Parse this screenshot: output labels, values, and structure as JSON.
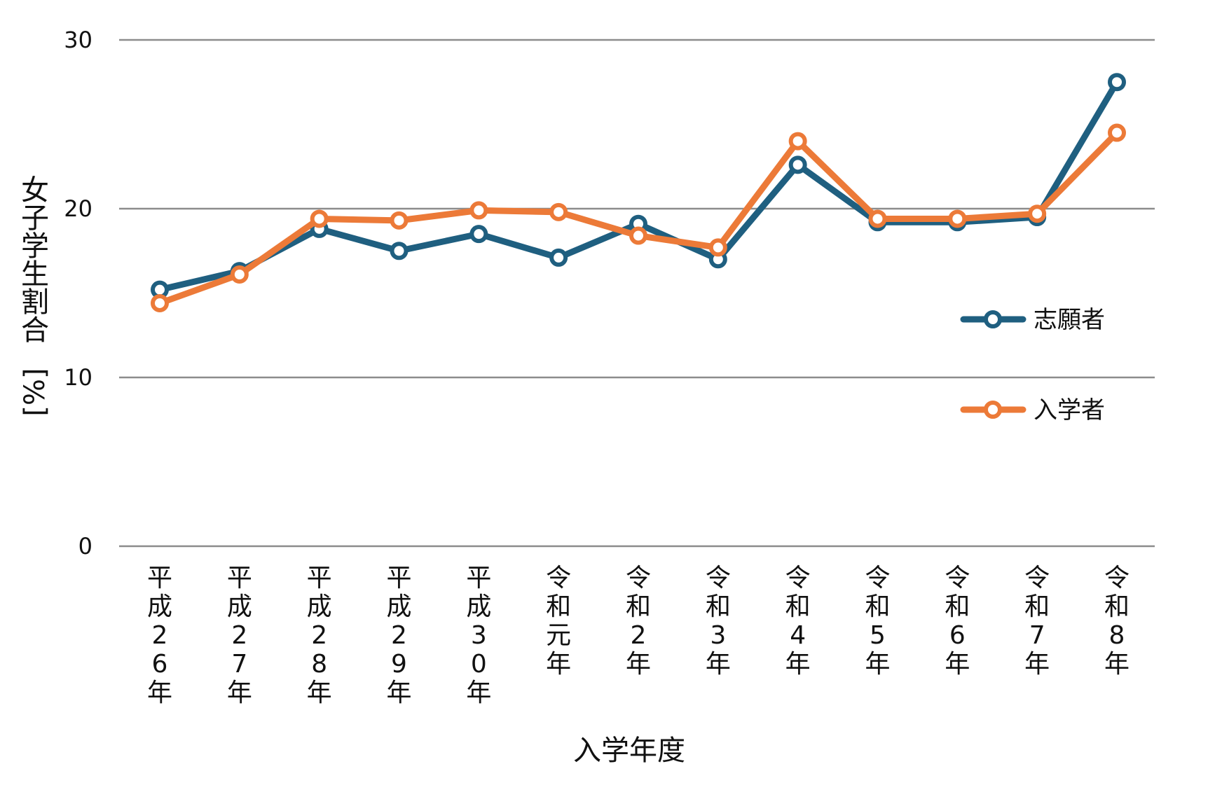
{
  "chart_data": {
    "type": "line",
    "title": "",
    "xlabel": "入学年度",
    "ylabel": "女子学生割合[%]",
    "ylim": [
      0,
      30
    ],
    "yticks": [
      "0",
      "10",
      "20",
      "30"
    ],
    "grid": true,
    "legend_position": "right",
    "categories": [
      "平成26年",
      "平成27年",
      "平成28年",
      "平成29年",
      "平成30年",
      "令和元年",
      "令和2年",
      "令和3年",
      "令和4年",
      "令和5年",
      "令和6年",
      "令和7年",
      "令和8年"
    ],
    "series": [
      {
        "name": "志願者",
        "color": "#1f5f80",
        "values": [
          15.2,
          16.3,
          18.8,
          17.5,
          18.5,
          17.1,
          19.1,
          17.0,
          22.6,
          19.2,
          19.2,
          19.5,
          27.5
        ]
      },
      {
        "name": "入学者",
        "color": "#ec7a38",
        "values": [
          14.4,
          16.1,
          19.4,
          19.3,
          19.9,
          19.8,
          18.4,
          17.7,
          24.0,
          19.4,
          19.4,
          19.7,
          24.5
        ]
      }
    ]
  }
}
